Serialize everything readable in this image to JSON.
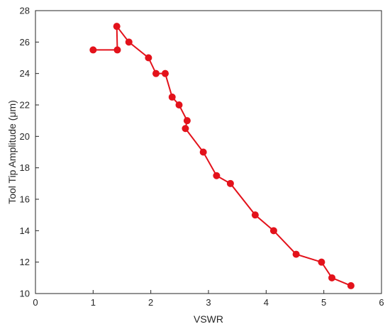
{
  "chart_data": {
    "type": "line",
    "xlabel": "VSWR",
    "ylabel": "Tool Tip Amplitude (μm)",
    "xlim": [
      0,
      6
    ],
    "ylim": [
      10,
      28
    ],
    "xticks": [
      0,
      1,
      2,
      3,
      4,
      5,
      6
    ],
    "yticks": [
      10,
      12,
      14,
      16,
      18,
      20,
      22,
      24,
      26,
      28
    ],
    "grid": false,
    "legend": "none",
    "colors": {
      "series": "#e3121b",
      "axis": "#262626"
    },
    "series": [
      {
        "points": [
          [
            1.0,
            25.5
          ],
          [
            1.42,
            25.5
          ],
          [
            1.41,
            27.0
          ],
          [
            1.62,
            26.0
          ],
          [
            1.96,
            25.0
          ],
          [
            2.09,
            24.0
          ],
          [
            2.25,
            24.0
          ],
          [
            2.37,
            22.5
          ],
          [
            2.49,
            22.0
          ],
          [
            2.63,
            21.0
          ],
          [
            2.6,
            20.5
          ],
          [
            2.91,
            19.0
          ],
          [
            3.14,
            17.5
          ],
          [
            3.38,
            17.0
          ],
          [
            3.81,
            15.0
          ],
          [
            4.13,
            14.0
          ],
          [
            4.52,
            12.5
          ],
          [
            4.96,
            12.0
          ],
          [
            5.14,
            11.0
          ],
          [
            5.47,
            10.5
          ]
        ]
      }
    ]
  }
}
